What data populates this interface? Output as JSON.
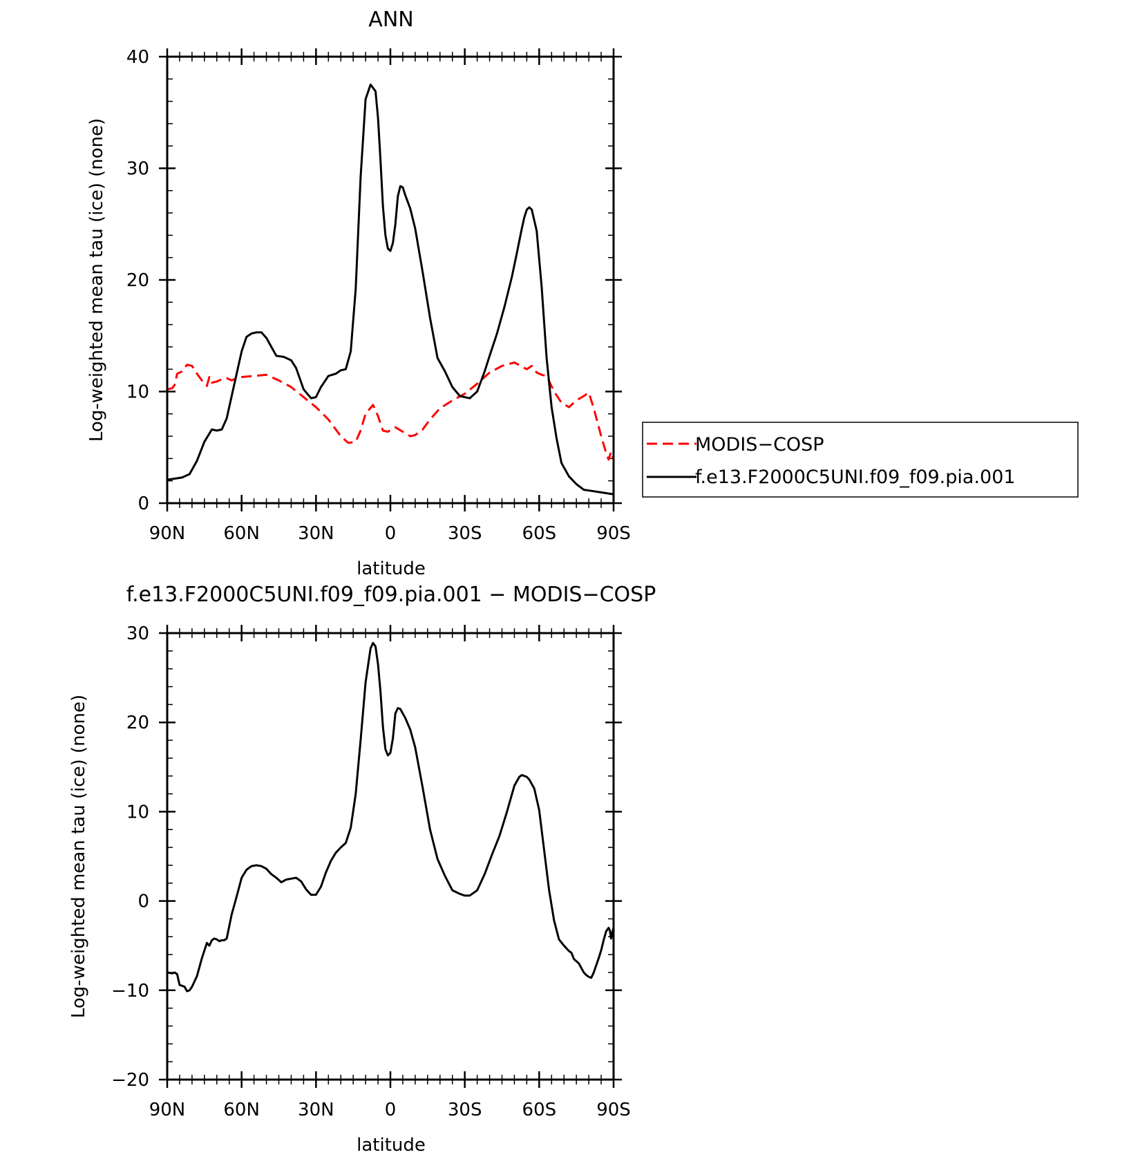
{
  "chart_data": [
    {
      "type": "line",
      "title": "ANN",
      "xlabel": "latitude",
      "ylabel": "Log-weighted mean tau (ice) (none)",
      "xlim": [
        90,
        -90
      ],
      "ylim": [
        0,
        40
      ],
      "yticks": [
        0,
        10,
        20,
        30,
        40
      ],
      "ytick_labels": [
        "0",
        "10",
        "20",
        "30",
        "40"
      ],
      "xticks": [
        90,
        60,
        30,
        0,
        -30,
        -60,
        -90
      ],
      "xtick_labels": [
        "90N",
        "60N",
        "30N",
        "0",
        "30S",
        "60S",
        "90S"
      ],
      "grid": false,
      "legend": "outside-right",
      "series": [
        {
          "name": "MODIS−COSP",
          "color": "#ff0000",
          "dash": "dashed",
          "x": [
            90,
            88,
            87,
            86,
            84,
            82,
            80,
            78,
            76,
            74,
            73,
            72,
            70,
            68,
            66,
            64,
            62,
            60,
            55,
            50,
            45,
            40,
            35,
            30,
            25,
            20,
            17,
            14,
            12,
            10,
            7,
            5,
            3,
            1,
            -2,
            -5,
            -8,
            -10,
            -13,
            -16,
            -20,
            -25,
            -30,
            -35,
            -40,
            -45,
            -50,
            -55,
            -57,
            -59,
            -61,
            -63,
            -66,
            -69,
            -72,
            -75,
            -78,
            -80,
            -82,
            -85,
            -87,
            -88,
            -89,
            -90
          ],
          "y": [
            10.2,
            10.3,
            10.6,
            11.6,
            11.8,
            12.4,
            12.3,
            11.6,
            11.0,
            10.5,
            11.3,
            10.8,
            10.9,
            11.1,
            11.2,
            11.0,
            11.2,
            11.3,
            11.4,
            11.5,
            11.0,
            10.4,
            9.5,
            8.6,
            7.5,
            6.0,
            5.4,
            5.5,
            6.5,
            8.0,
            8.8,
            7.8,
            6.5,
            6.4,
            6.8,
            6.4,
            6.0,
            6.1,
            6.6,
            7.5,
            8.5,
            9.2,
            9.8,
            10.7,
            11.7,
            12.3,
            12.6,
            12.0,
            12.3,
            11.7,
            11.5,
            11.4,
            10.0,
            9.0,
            8.6,
            9.2,
            9.6,
            9.9,
            8.5,
            6.0,
            4.5,
            3.9,
            4.6,
            3.9
          ]
        },
        {
          "name": "f.e13.F2000C5UNI.f09_f09.pia.001",
          "color": "#000000",
          "dash": "solid",
          "x": [
            90,
            87,
            84,
            81,
            78,
            75,
            72,
            70,
            68,
            66,
            64,
            62,
            60,
            58,
            56,
            54,
            52,
            50,
            48,
            46,
            43,
            40,
            38,
            35,
            32,
            30,
            28,
            25,
            22,
            20,
            18,
            16,
            14,
            12,
            10,
            8,
            6,
            5,
            4,
            3,
            2,
            1,
            0,
            -1,
            -2,
            -3,
            -4,
            -5,
            -6,
            -8,
            -10,
            -13,
            -16,
            -19,
            -22,
            -25,
            -28,
            -30,
            -32,
            -35,
            -38,
            -40,
            -43,
            -46,
            -49,
            -51,
            -53,
            -54,
            -55,
            -56,
            -57,
            -59,
            -61,
            -63,
            -65,
            -67,
            -69,
            -72,
            -75,
            -78,
            -81,
            -84,
            -87,
            -90
          ],
          "y": [
            2.1,
            2.2,
            2.3,
            2.6,
            3.8,
            5.5,
            6.6,
            6.5,
            6.6,
            7.6,
            9.6,
            11.6,
            13.6,
            14.9,
            15.2,
            15.3,
            15.3,
            14.8,
            14.0,
            13.2,
            13.1,
            12.8,
            12.1,
            10.2,
            9.4,
            9.5,
            10.4,
            11.4,
            11.6,
            11.9,
            12.0,
            13.6,
            19.2,
            29.2,
            36.2,
            37.5,
            36.9,
            34.5,
            30.8,
            26.6,
            24.0,
            22.8,
            22.6,
            23.3,
            25.0,
            27.5,
            28.4,
            28.3,
            27.6,
            26.4,
            24.6,
            20.7,
            16.6,
            13.0,
            11.8,
            10.4,
            9.6,
            9.5,
            9.4,
            10.0,
            11.8,
            13.2,
            15.2,
            17.6,
            20.3,
            22.4,
            24.6,
            25.6,
            26.3,
            26.5,
            26.3,
            24.4,
            19.4,
            13.0,
            8.6,
            5.8,
            3.6,
            2.4,
            1.7,
            1.2,
            1.1,
            1.0,
            0.9,
            0.8
          ]
        }
      ]
    },
    {
      "type": "line",
      "title": "f.e13.F2000C5UNI.f09_f09.pia.001 − MODIS−COSP",
      "xlabel": "latitude",
      "ylabel": "Log-weighted mean tau (ice) (none)",
      "xlim": [
        90,
        -90
      ],
      "ylim": [
        -20,
        30
      ],
      "yticks": [
        -20,
        -10,
        0,
        10,
        20,
        30
      ],
      "ytick_labels": [
        "−20",
        "−10",
        "0",
        "10",
        "20",
        "30"
      ],
      "xticks": [
        90,
        60,
        30,
        0,
        -30,
        -60,
        -90
      ],
      "xtick_labels": [
        "90N",
        "60N",
        "30N",
        "0",
        "30S",
        "60S",
        "90S"
      ],
      "grid": false,
      "series": [
        {
          "color": "#000000",
          "dash": "solid",
          "x": [
            90,
            88,
            87,
            86,
            85,
            84,
            83,
            82,
            81,
            80,
            79,
            78,
            76,
            74,
            73,
            72,
            71,
            70,
            69,
            68,
            67,
            66,
            64,
            62,
            60,
            58,
            56,
            54,
            52,
            50,
            48,
            46,
            44,
            42,
            40,
            38,
            36,
            34,
            32,
            30,
            28,
            26,
            24,
            22,
            20,
            18,
            16,
            14,
            12,
            10,
            8,
            7,
            6,
            5,
            4,
            3,
            2,
            1,
            0,
            -1,
            -2,
            -3,
            -4,
            -5,
            -6,
            -8,
            -10,
            -13,
            -16,
            -19,
            -22,
            -25,
            -28,
            -30,
            -32,
            -35,
            -38,
            -41,
            -44,
            -47,
            -50,
            -52,
            -53,
            -54,
            -55,
            -56,
            -58,
            -60,
            -62,
            -64,
            -66,
            -68,
            -70,
            -72,
            -73,
            -74,
            -76,
            -77,
            -78,
            -79,
            -80,
            -81,
            -82,
            -84,
            -85,
            -86,
            -87,
            -88,
            -88.5,
            -89,
            -89.5,
            -90
          ],
          "y": [
            -8.0,
            -8.1,
            -8.0,
            -8.2,
            -9.4,
            -9.5,
            -9.6,
            -10.1,
            -10.0,
            -9.6,
            -9.0,
            -8.4,
            -6.4,
            -4.7,
            -5.0,
            -4.4,
            -4.2,
            -4.3,
            -4.5,
            -4.4,
            -4.4,
            -4.2,
            -1.5,
            0.5,
            2.6,
            3.5,
            3.9,
            4.0,
            3.9,
            3.6,
            3.0,
            2.6,
            2.1,
            2.4,
            2.5,
            2.6,
            2.2,
            1.3,
            0.7,
            0.7,
            1.6,
            3.2,
            4.5,
            5.4,
            6.0,
            6.5,
            8.2,
            12.0,
            18.0,
            24.5,
            28.3,
            28.9,
            28.5,
            26.5,
            23.5,
            19.5,
            17.0,
            16.3,
            16.6,
            18.2,
            21.0,
            21.6,
            21.5,
            21.0,
            20.5,
            19.2,
            17.2,
            12.7,
            8.0,
            4.7,
            2.8,
            1.2,
            0.8,
            0.6,
            0.6,
            1.2,
            3.0,
            5.2,
            7.3,
            10.0,
            12.9,
            13.9,
            14.1,
            14.0,
            13.9,
            13.6,
            12.6,
            10.2,
            5.7,
            1.2,
            -2.2,
            -4.3,
            -5.0,
            -5.6,
            -5.8,
            -6.5,
            -7.0,
            -7.5,
            -8.0,
            -8.3,
            -8.5,
            -8.6,
            -8.0,
            -6.4,
            -5.5,
            -4.4,
            -3.4,
            -3.0,
            -3.3,
            -4.2,
            -3.5,
            -3.0
          ]
        }
      ]
    }
  ],
  "legend": {
    "items": [
      {
        "label": "MODIS−COSP"
      },
      {
        "label": "f.e13.F2000C5UNI.f09_f09.pia.001"
      }
    ]
  }
}
